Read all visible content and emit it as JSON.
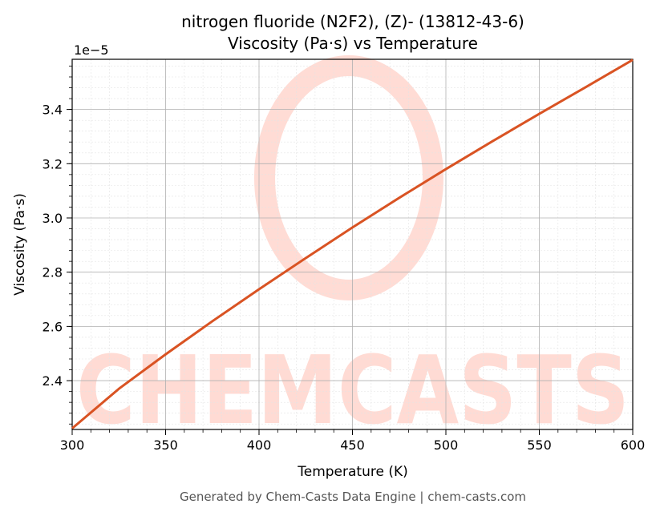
{
  "chart_data": {
    "type": "line",
    "title": "nitrogen fluoride (N2F2), (Z)- (13812-43-6)",
    "subtitle": "Viscosity (Pa·s) vs Temperature",
    "xlabel": "Temperature (K)",
    "ylabel": "Viscosity (Pa·s)",
    "y_offset_label": "1e−5",
    "xlim": [
      300,
      600
    ],
    "ylim": [
      2.22,
      3.585
    ],
    "x_ticks": [
      300,
      350,
      400,
      450,
      500,
      550,
      600
    ],
    "x_tick_labels": [
      "300",
      "350",
      "400",
      "450",
      "500",
      "550",
      "600"
    ],
    "y_ticks": [
      2.4,
      2.6,
      2.8,
      3.0,
      3.2,
      3.4
    ],
    "y_tick_labels": [
      "2.4",
      "2.6",
      "2.8",
      "3.0",
      "3.2",
      "3.4"
    ],
    "grid": true,
    "line_color": "#d95323",
    "series": [
      {
        "x": [
          300,
          325,
          350,
          375,
          400,
          425,
          450,
          475,
          500,
          525,
          550,
          575,
          600
        ],
        "y": [
          2.224,
          2.37,
          2.497,
          2.619,
          2.737,
          2.852,
          2.965,
          3.074,
          3.18,
          3.283,
          3.384,
          3.483,
          3.583
        ]
      }
    ]
  },
  "watermark": {
    "text": "CHEMCASTS",
    "color": "#ffd8d0"
  },
  "footer": "Generated by Chem-Casts Data Engine | chem-casts.com"
}
